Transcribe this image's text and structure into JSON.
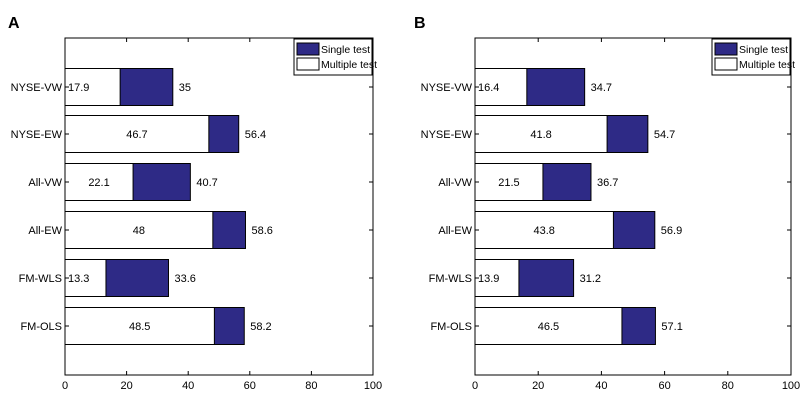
{
  "chart_data": [
    {
      "panel_label": "A",
      "type": "bar",
      "orientation": "horizontal",
      "categories": [
        "NYSE-VW",
        "NYSE-EW",
        "All-VW",
        "All-EW",
        "FM-WLS",
        "FM-OLS"
      ],
      "series": [
        {
          "name": "Single test",
          "values": [
            35,
            56.4,
            40.7,
            58.6,
            33.6,
            58.2
          ],
          "value_labels": [
            "35",
            "56.4",
            "40.7",
            "58.6",
            "33.6",
            "58.2"
          ],
          "color": "#2e2a86"
        },
        {
          "name": "Multiple test",
          "values": [
            17.9,
            46.7,
            22.1,
            48,
            13.3,
            48.5
          ],
          "value_labels": [
            "17.9",
            "46.7",
            "22.1",
            "48",
            "13.3",
            "48.5"
          ],
          "color": "#ffffff"
        }
      ],
      "xlim": [
        0,
        100
      ],
      "xticks": [
        0,
        20,
        40,
        60,
        80,
        100
      ],
      "xtick_labels": [
        "0",
        "20",
        "40",
        "60",
        "80",
        "100"
      ],
      "grid": false,
      "legend_position": "top-right"
    },
    {
      "panel_label": "B",
      "type": "bar",
      "orientation": "horizontal",
      "categories": [
        "NYSE-VW",
        "NYSE-EW",
        "All-VW",
        "All-EW",
        "FM-WLS",
        "FM-OLS"
      ],
      "series": [
        {
          "name": "Single test",
          "values": [
            34.7,
            54.7,
            36.7,
            56.9,
            31.2,
            57.1
          ],
          "value_labels": [
            "34.7",
            "54.7",
            "36.7",
            "56.9",
            "31.2",
            "57.1"
          ],
          "color": "#2e2a86"
        },
        {
          "name": "Multiple test",
          "values": [
            16.4,
            41.8,
            21.5,
            43.8,
            13.9,
            46.5
          ],
          "value_labels": [
            "16.4",
            "41.8",
            "21.5",
            "43.8",
            "13.9",
            "46.5"
          ],
          "color": "#ffffff"
        }
      ],
      "xlim": [
        0,
        100
      ],
      "xticks": [
        0,
        20,
        40,
        60,
        80,
        100
      ],
      "xtick_labels": [
        "0",
        "20",
        "40",
        "60",
        "80",
        "100"
      ],
      "grid": false,
      "legend_position": "top-right"
    }
  ]
}
